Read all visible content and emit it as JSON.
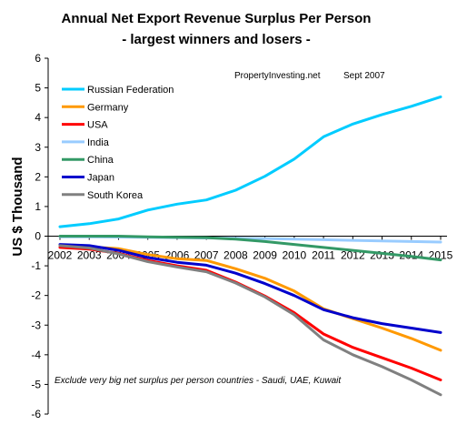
{
  "chart_data": {
    "type": "line",
    "title": "Annual Net Export Revenue Surplus Per Person",
    "subtitle": "- largest winners and losers -",
    "ylabel": "US $ Thousand",
    "xlabel": "",
    "source_note": "PropertyInvesting.net",
    "date_note": "Sept 2007",
    "footnote": "Exclude very big net surplus per person countries - Saudi, UAE, Kuwait",
    "ylim": [
      -6,
      6
    ],
    "yticks": [
      -6,
      -5,
      -4,
      -3,
      -2,
      -1,
      0,
      1,
      2,
      3,
      4,
      5,
      6
    ],
    "ytick_labels": [
      "-6",
      "-5",
      "-4",
      "-3",
      "-2",
      "-1",
      "0",
      "1",
      "2",
      "3",
      "4",
      "5",
      "6"
    ],
    "x": [
      "2002",
      "2003",
      "2004",
      "2005",
      "2006",
      "2007",
      "2008",
      "2009",
      "2010",
      "2011",
      "2012",
      "2013",
      "2014",
      "2015"
    ],
    "grid": false,
    "legend_position": "top-left",
    "series": [
      {
        "name": "Russian Federation",
        "color": "#00CCFF",
        "values": [
          0.32,
          0.42,
          0.58,
          0.88,
          1.08,
          1.22,
          1.55,
          2.02,
          2.6,
          3.35,
          3.78,
          4.1,
          4.38,
          4.7
        ]
      },
      {
        "name": "Germany",
        "color": "#FF9900",
        "values": [
          -0.32,
          -0.36,
          -0.42,
          -0.62,
          -0.76,
          -0.82,
          -1.1,
          -1.42,
          -1.85,
          -2.45,
          -2.78,
          -3.1,
          -3.45,
          -3.85
        ]
      },
      {
        "name": "USA",
        "color": "#FF0000",
        "values": [
          -0.38,
          -0.44,
          -0.58,
          -0.82,
          -1.0,
          -1.15,
          -1.55,
          -2.02,
          -2.58,
          -3.3,
          -3.75,
          -4.1,
          -4.45,
          -4.85
        ]
      },
      {
        "name": "India",
        "color": "#99CCFF",
        "values": [
          -0.02,
          -0.02,
          -0.03,
          -0.04,
          -0.05,
          -0.06,
          -0.07,
          -0.08,
          -0.1,
          -0.12,
          -0.14,
          -0.16,
          -0.18,
          -0.2
        ]
      },
      {
        "name": "China",
        "color": "#339966",
        "values": [
          0.0,
          0.0,
          0.0,
          -0.02,
          -0.04,
          -0.05,
          -0.1,
          -0.18,
          -0.28,
          -0.38,
          -0.48,
          -0.58,
          -0.68,
          -0.8
        ]
      },
      {
        "name": "Japan",
        "color": "#0000CC",
        "values": [
          -0.28,
          -0.32,
          -0.48,
          -0.72,
          -0.88,
          -0.98,
          -1.25,
          -1.6,
          -2.0,
          -2.48,
          -2.75,
          -2.95,
          -3.1,
          -3.25
        ]
      },
      {
        "name": "South Korea",
        "color": "#808080",
        "values": [
          -0.32,
          -0.4,
          -0.6,
          -0.86,
          -1.04,
          -1.2,
          -1.58,
          -2.05,
          -2.65,
          -3.5,
          -4.0,
          -4.4,
          -4.85,
          -5.35
        ]
      }
    ]
  }
}
